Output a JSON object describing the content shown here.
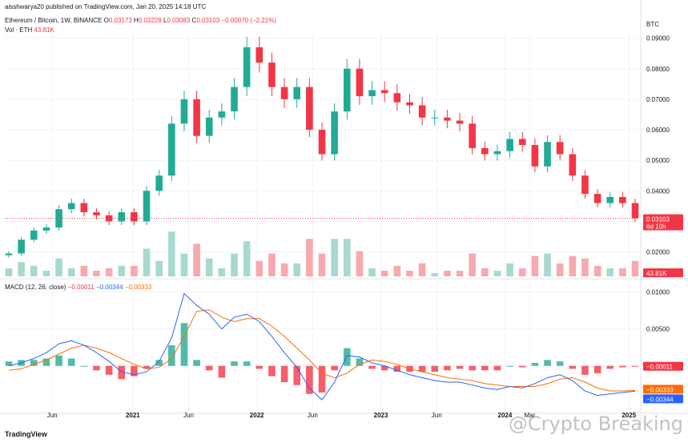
{
  "publish_line": "aisshwarya20 published on TradingView.com, Jan 20, 2025 14:18 UTC",
  "symbol_line": "Ethereum / Bitcoin, 1W, BINANCE",
  "ohlc": {
    "o_label": "O",
    "o": "0.03173",
    "h_label": "H",
    "h": "0.03228",
    "l_label": "L",
    "l": "0.03083",
    "c_label": "C",
    "c": "0.03103",
    "chg": "−0.00070 (−2.21%)"
  },
  "vol_label": "Vol · ETH",
  "vol_value": "43.81K",
  "currency": "BTC",
  "price_badge": "0.03103",
  "price_countdown": "6d 10h",
  "vol_badge": "43.81K",
  "macd_label": "MACD (12, 26, close)",
  "macd_hist": "−0.00011",
  "macd_line": "−0.00344",
  "macd_signal": "−0.00333",
  "macd_hist_badge": "−0.00011",
  "macd_signal_badge": "−0.00333",
  "macd_line_badge": "−0.00344",
  "tv_logo": "TradingView",
  "watermark": "@Crypto Breaking",
  "colors": {
    "up": "#22ab94",
    "down": "#f23645",
    "vol_up": "#a7d9cf",
    "vol_down": "#f7a9ae",
    "macd": "#2962ff",
    "signal": "#ff6d00",
    "grid": "#f0f3fa",
    "price_line": "#f23645"
  },
  "chart_data": [
    {
      "type": "candlestick",
      "title": "Ethereum / Bitcoin, 1W, BINANCE",
      "ylabel": "BTC",
      "ylim": [
        0.012,
        0.092
      ],
      "yticks": [
        "0.02000",
        "0.03000",
        "0.04000",
        "0.05000",
        "0.06000",
        "0.07000",
        "0.08000",
        "0.09000"
      ],
      "xticks": [
        "Jun",
        "2021",
        "Jun",
        "2022",
        "Jun",
        "2023",
        "Jun",
        "2024",
        "Mar",
        "2025"
      ],
      "x": [
        2020.0,
        2020.1,
        2020.2,
        2020.3,
        2020.4,
        2020.5,
        2020.6,
        2020.7,
        2020.8,
        2020.9,
        2021.0,
        2021.1,
        2021.2,
        2021.3,
        2021.4,
        2021.5,
        2021.6,
        2021.7,
        2021.8,
        2021.9,
        2022.0,
        2022.1,
        2022.2,
        2022.3,
        2022.4,
        2022.5,
        2022.6,
        2022.7,
        2022.8,
        2022.9,
        2023.0,
        2023.1,
        2023.2,
        2023.3,
        2023.4,
        2023.5,
        2023.6,
        2023.7,
        2023.8,
        2023.9,
        2024.0,
        2024.1,
        2024.2,
        2024.3,
        2024.4,
        2024.5,
        2024.6,
        2024.7,
        2024.8,
        2024.9,
        2025.05
      ],
      "close": [
        0.0195,
        0.024,
        0.027,
        0.028,
        0.034,
        0.036,
        0.033,
        0.032,
        0.03,
        0.033,
        0.03,
        0.04,
        0.045,
        0.062,
        0.07,
        0.058,
        0.064,
        0.066,
        0.074,
        0.087,
        0.082,
        0.074,
        0.07,
        0.074,
        0.06,
        0.052,
        0.066,
        0.08,
        0.071,
        0.073,
        0.072,
        0.069,
        0.068,
        0.064,
        0.064,
        0.063,
        0.062,
        0.054,
        0.052,
        0.053,
        0.057,
        0.055,
        0.048,
        0.056,
        0.052,
        0.045,
        0.039,
        0.036,
        0.038,
        0.036,
        0.031
      ],
      "volume_range": [
        0,
        1.0
      ],
      "current_price": 0.03103
    },
    {
      "type": "line",
      "title": "MACD (12, 26, close)",
      "ylim": [
        -0.006,
        0.0105
      ],
      "yticks": [
        "0.01000",
        "0.00500"
      ],
      "series": [
        {
          "name": "MACD",
          "values": [
            0.0,
            0.0004,
            0.001,
            0.0018,
            0.003,
            0.0034,
            0.0028,
            0.0018,
            0.0006,
            -0.0008,
            -0.0012,
            -0.0008,
            0.0006,
            0.0038,
            0.0098,
            0.0082,
            0.007,
            0.005,
            0.0066,
            0.007,
            0.006,
            0.004,
            0.0018,
            -0.0002,
            -0.003,
            -0.0046,
            -0.0022,
            0.0014,
            0.0012,
            0.0004,
            0.0,
            -0.0006,
            -0.0012,
            -0.0016,
            -0.002,
            -0.0022,
            -0.0022,
            -0.0026,
            -0.003,
            -0.0032,
            -0.0028,
            -0.003,
            -0.0024,
            -0.0016,
            -0.0012,
            -0.002,
            -0.0034,
            -0.004,
            -0.0038,
            -0.0036,
            -0.00344
          ]
        },
        {
          "name": "Signal",
          "values": [
            -0.0006,
            -0.0004,
            0.0002,
            0.0008,
            0.0016,
            0.0024,
            0.0028,
            0.0024,
            0.0018,
            0.001,
            0.0002,
            -0.0004,
            -0.0002,
            0.001,
            0.004,
            0.0074,
            0.0076,
            0.0066,
            0.006,
            0.0064,
            0.0064,
            0.0054,
            0.004,
            0.0024,
            0.0008,
            -0.001,
            -0.0016,
            -0.001,
            0.0002,
            0.0008,
            0.0006,
            0.0002,
            -0.0004,
            -0.0008,
            -0.0012,
            -0.0016,
            -0.0018,
            -0.002,
            -0.0024,
            -0.0026,
            -0.0028,
            -0.0028,
            -0.0028,
            -0.0024,
            -0.0018,
            -0.0016,
            -0.0022,
            -0.003,
            -0.0034,
            -0.0034,
            -0.00333
          ]
        },
        {
          "name": "Histogram",
          "values": [
            0.0006,
            0.0008,
            0.0008,
            0.001,
            0.0014,
            0.001,
            0.0,
            -0.0006,
            -0.0012,
            -0.0018,
            -0.0014,
            -0.0004,
            0.0008,
            0.0028,
            0.0058,
            0.0008,
            -0.0006,
            -0.0016,
            0.0006,
            0.0006,
            -0.0004,
            -0.0014,
            -0.0022,
            -0.0026,
            -0.0038,
            -0.0036,
            -0.0006,
            0.0024,
            0.001,
            -0.0004,
            -0.0006,
            -0.0008,
            -0.0008,
            -0.0008,
            -0.0008,
            -0.0006,
            -0.0004,
            -0.0006,
            -0.0006,
            -0.0006,
            0.0,
            -0.0002,
            0.0004,
            0.0008,
            0.0006,
            -0.0004,
            -0.0012,
            -0.001,
            -0.0004,
            -0.0002,
            -0.00011
          ]
        }
      ]
    }
  ]
}
